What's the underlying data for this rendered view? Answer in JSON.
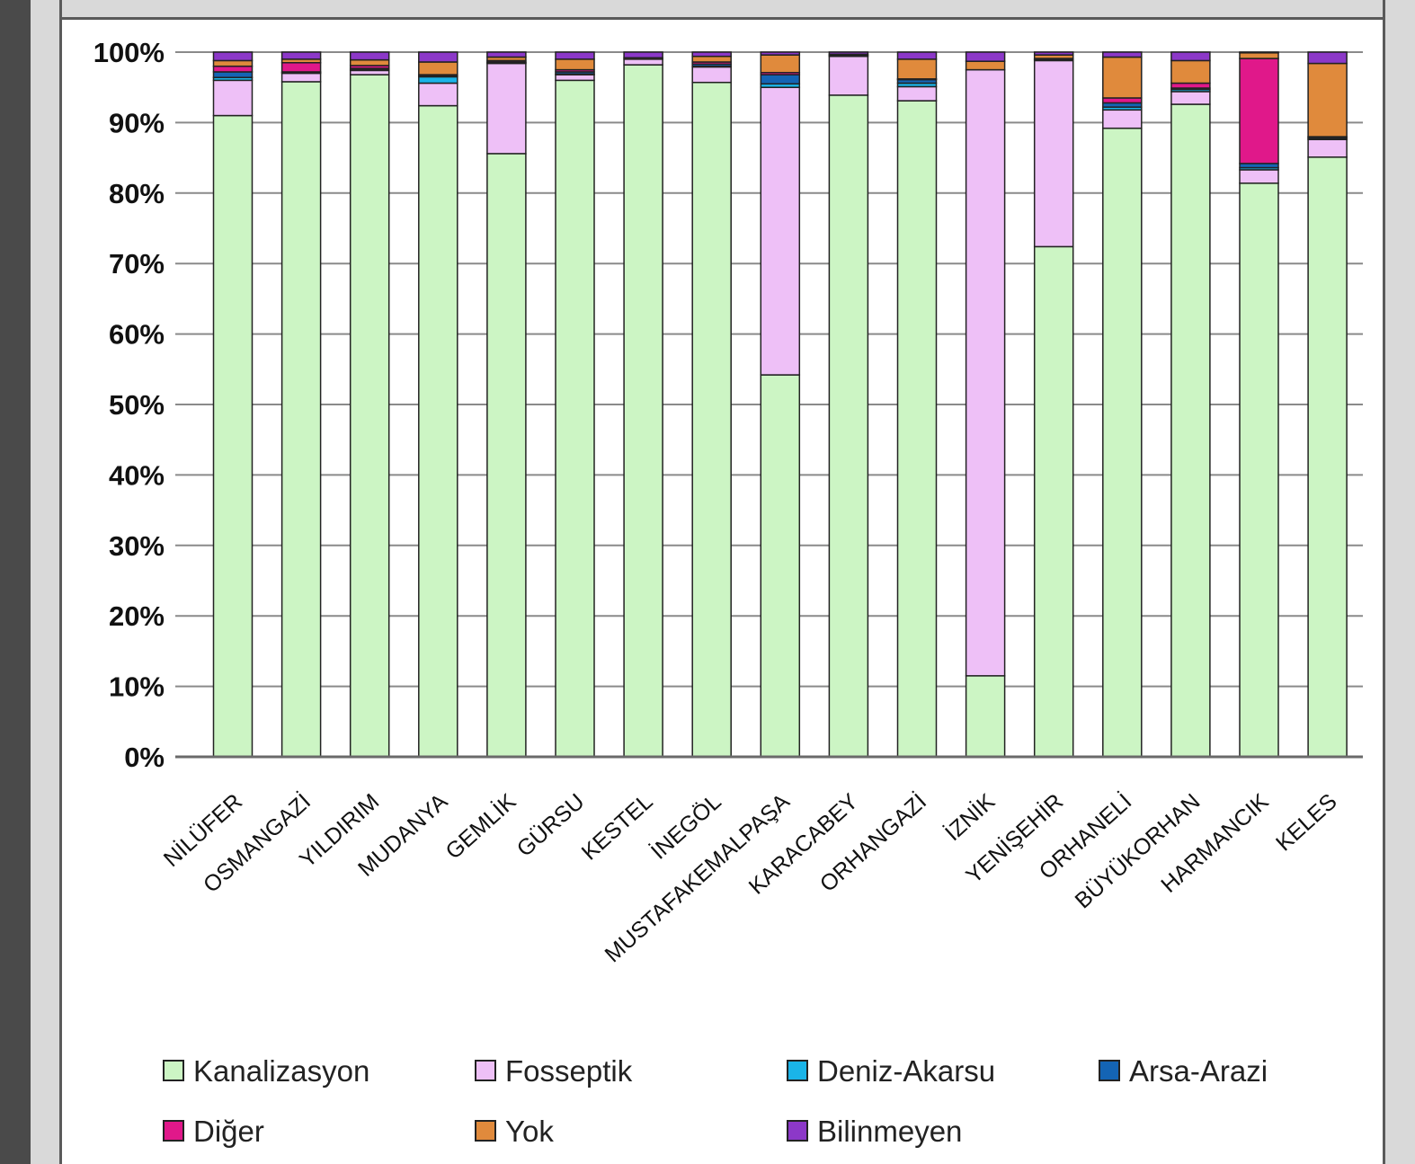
{
  "chart_data": {
    "type": "bar",
    "stacked": true,
    "normalized": true,
    "title": "",
    "xlabel": "",
    "ylabel": "",
    "ylim": [
      0,
      100
    ],
    "y_ticks": [
      "0%",
      "10%",
      "20%",
      "30%",
      "40%",
      "50%",
      "60%",
      "70%",
      "80%",
      "90%",
      "100%"
    ],
    "grid": true,
    "legend_position": "bottom",
    "categories": [
      "NİLÜFER",
      "OSMANGAZİ",
      "YILDIRIM",
      "MUDANYA",
      "GEMLİK",
      "GÜRSU",
      "KESTEL",
      "İNEGÖL",
      "MUSTAFAKEMALPAŞA",
      "KARACABEY",
      "ORHANGAZİ",
      "İZNİK",
      "YENİŞEHİR",
      "ORHANELİ",
      "BÜYÜKORHAN",
      "HARMANCIK",
      "KELES"
    ],
    "series": [
      {
        "name": "Kanalizasyon",
        "color": "#ccf5c4",
        "values": [
          91.0,
          95.8,
          96.8,
          92.4,
          85.6,
          96.0,
          98.2,
          95.7,
          54.2,
          93.8,
          93.1,
          11.5,
          72.4,
          89.2,
          92.6,
          81.4,
          85.1
        ]
      },
      {
        "name": "Fosseptik",
        "color": "#eec0f7",
        "values": [
          5.0,
          1.2,
          0.6,
          3.2,
          12.8,
          0.8,
          0.8,
          2.2,
          40.8,
          5.5,
          2.0,
          86.0,
          26.4,
          2.6,
          1.8,
          1.9,
          2.5
        ]
      },
      {
        "name": "Deniz-Akarsu",
        "color": "#1ab4e8",
        "values": [
          0.4,
          0.1,
          0.1,
          0.9,
          0.1,
          0.1,
          0.0,
          0.1,
          0.5,
          0.1,
          0.5,
          0.0,
          0.1,
          0.4,
          0.3,
          0.3,
          0.1
        ]
      },
      {
        "name": "Arsa-Arazi",
        "color": "#1464b4",
        "values": [
          0.8,
          0.1,
          0.2,
          0.1,
          0.1,
          0.3,
          0.0,
          0.3,
          1.3,
          0.1,
          0.5,
          0.0,
          0.1,
          0.6,
          0.2,
          0.6,
          0.2
        ]
      },
      {
        "name": "Diğer",
        "color": "#e0188a",
        "values": [
          0.8,
          1.3,
          0.4,
          0.2,
          0.2,
          0.3,
          0.0,
          0.3,
          0.3,
          0.0,
          0.1,
          0.0,
          0.1,
          0.7,
          0.7,
          14.9,
          0.1
        ]
      },
      {
        "name": "Yok",
        "color": "#e08a3c",
        "values": [
          0.8,
          0.5,
          0.8,
          1.8,
          0.5,
          1.5,
          0.2,
          0.8,
          2.5,
          0.1,
          2.8,
          1.2,
          0.5,
          5.8,
          3.2,
          0.8,
          10.4
        ]
      },
      {
        "name": "Bilinmeyen",
        "color": "#8c38c8",
        "values": [
          1.2,
          1.0,
          1.1,
          1.4,
          0.7,
          1.0,
          0.8,
          0.6,
          0.4,
          0.3,
          1.0,
          1.3,
          0.4,
          0.7,
          1.2,
          0.1,
          1.6
        ]
      }
    ]
  }
}
